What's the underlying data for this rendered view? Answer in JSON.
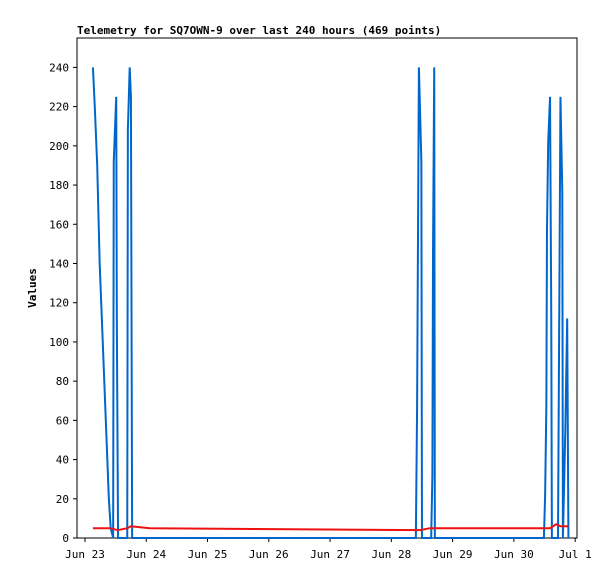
{
  "chart_data": {
    "type": "line",
    "title": "Telemetry for SQ7OWN-9 over last 240 hours (469 points)",
    "y_label": "Values",
    "xlim": [
      22.87,
      31.03
    ],
    "xticks": [
      {
        "value": 23,
        "label": "Jun 23"
      },
      {
        "value": 24,
        "label": "Jun 24"
      },
      {
        "value": 25,
        "label": "Jun 25"
      },
      {
        "value": 26,
        "label": "Jun 26"
      },
      {
        "value": 27,
        "label": "Jun 27"
      },
      {
        "value": 28,
        "label": "Jun 28"
      },
      {
        "value": 29,
        "label": "Jun 29"
      },
      {
        "value": 30,
        "label": "Jun 30"
      },
      {
        "value": 31,
        "label": "Jul 1"
      }
    ],
    "ylim": [
      0,
      255
    ],
    "yticks": [
      0,
      20,
      40,
      60,
      80,
      100,
      120,
      140,
      160,
      180,
      200,
      220,
      240
    ],
    "series": [
      {
        "color": "#0066cc",
        "x": [
          23.13,
          23.16,
          23.2,
          23.24,
          23.29,
          23.34,
          23.39,
          23.42,
          23.46,
          23.47,
          23.51,
          23.52,
          23.54,
          23.69,
          23.7,
          23.73,
          23.75,
          23.77,
          28.4,
          28.42,
          28.45,
          28.49,
          28.5,
          28.65,
          28.67,
          28.68,
          28.7,
          28.71,
          30.49,
          30.51,
          30.53,
          30.54,
          30.56,
          30.59,
          30.61,
          30.62,
          30.72,
          30.76,
          30.79,
          30.8,
          30.84,
          30.87,
          30.89
        ],
        "values": [
          240,
          220,
          190,
          140,
          100,
          60,
          20,
          5,
          0,
          192,
          225,
          112,
          0,
          0,
          208,
          240,
          225,
          0,
          0,
          65,
          240,
          192,
          0,
          0,
          32,
          145,
          240,
          0,
          0,
          22,
          68,
          157,
          202,
          225,
          112,
          0,
          0,
          225,
          177,
          0,
          56,
          112,
          0
        ]
      },
      {
        "color": "#ee1111",
        "x": [
          23.13,
          23.41,
          23.54,
          23.69,
          23.75,
          23.9,
          24.06,
          28.47,
          28.63,
          30.59,
          30.69,
          30.76,
          30.89
        ],
        "values": [
          5,
          5,
          4,
          5,
          6,
          5.5,
          5,
          4,
          5,
          5,
          7,
          6,
          6
        ]
      }
    ]
  }
}
